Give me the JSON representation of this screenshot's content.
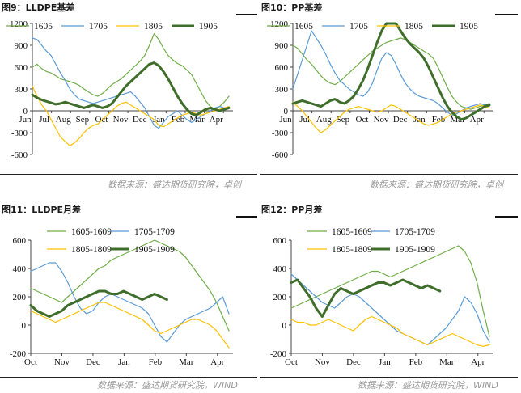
{
  "panels": [
    {
      "title": "图9：LLDPE基差",
      "source": "数据来源：盛达期货研究院，卓创",
      "chart_data": {
        "type": "line",
        "ylim": [
          -600,
          1200
        ],
        "yticks": [
          -600,
          -300,
          0,
          300,
          600,
          900,
          1200
        ],
        "xticks": [
          "Jun",
          "Jul",
          "Aug",
          "Sep",
          "Oct",
          "Nov",
          "Dec",
          "Jan",
          "Feb",
          "Mar",
          "Apr"
        ],
        "xaxis_at": 0,
        "series": [
          {
            "name": "1605",
            "color": "#70ad47",
            "width": 1.2,
            "values": [
              600,
              640,
              580,
              540,
              520,
              480,
              440,
              420,
              400,
              380,
              350,
              300,
              260,
              220,
              200,
              240,
              300,
              360,
              400,
              440,
              500,
              560,
              620,
              680,
              760,
              900,
              1060,
              980,
              860,
              760,
              700,
              650,
              620,
              560,
              500,
              380,
              260,
              140,
              60,
              20,
              60,
              120,
              200
            ]
          },
          {
            "name": "1705",
            "color": "#5b9bd5",
            "width": 1.2,
            "values": [
              1000,
              980,
              900,
              820,
              760,
              640,
              520,
              420,
              300,
              220,
              160,
              140,
              120,
              100,
              120,
              140,
              160,
              180,
              200,
              220,
              240,
              260,
              200,
              120,
              40,
              -80,
              -200,
              -240,
              -160,
              -80,
              -40,
              0,
              -60,
              -120,
              -160,
              -120,
              -80,
              -40,
              0,
              40,
              60,
              40,
              60
            ]
          },
          {
            "name": "1805",
            "color": "#ffc000",
            "width": 1.2,
            "values": [
              340,
              200,
              80,
              0,
              -120,
              -240,
              -360,
              -420,
              -480,
              -440,
              -380,
              -300,
              -240,
              -200,
              -180,
              -120,
              -60,
              0,
              60,
              100,
              120,
              80,
              40,
              0,
              -40,
              -80,
              -120,
              -200,
              -220,
              -180,
              -140,
              -100,
              -60,
              -40,
              -20,
              -40,
              -60,
              -40,
              -20,
              0,
              20,
              40,
              60
            ]
          },
          {
            "name": "1905",
            "color": "#3f6e2a",
            "width": 3,
            "values": [
              220,
              180,
              150,
              130,
              110,
              90,
              100,
              120,
              100,
              80,
              60,
              40,
              60,
              80,
              60,
              40,
              60,
              100,
              180,
              260,
              340,
              400,
              460,
              520,
              580,
              640,
              660,
              620,
              540,
              440,
              320,
              200,
              100,
              20,
              -40,
              -60,
              -20,
              20,
              40,
              20,
              0,
              20,
              40
            ]
          }
        ]
      }
    },
    {
      "title": "图10：PP基差",
      "source": "数据来源：盛达期货研究院，卓创",
      "chart_data": {
        "type": "line",
        "ylim": [
          -600,
          1200
        ],
        "yticks": [
          -600,
          -300,
          0,
          300,
          600,
          900,
          1200
        ],
        "xticks": [
          "Jun",
          "Jul",
          "Aug",
          "Sep",
          "Oct",
          "Nov",
          "Dec",
          "Jan",
          "Feb",
          "Mar",
          "Apr"
        ],
        "xaxis_at": 0,
        "series": [
          {
            "name": "1605",
            "color": "#70ad47",
            "width": 1.2,
            "values": [
              900,
              860,
              780,
              700,
              640,
              560,
              480,
              420,
              380,
              360,
              400,
              460,
              520,
              580,
              640,
              700,
              760,
              820,
              860,
              900,
              940,
              960,
              980,
              1000,
              980,
              940,
              900,
              860,
              820,
              780,
              720,
              600,
              460,
              320,
              200,
              120,
              60,
              40,
              20,
              40,
              60,
              80,
              100
            ]
          },
          {
            "name": "1705",
            "color": "#5b9bd5",
            "width": 1.2,
            "values": [
              300,
              500,
              700,
              900,
              1100,
              1000,
              900,
              780,
              640,
              520,
              420,
              360,
              300,
              260,
              220,
              200,
              260,
              380,
              560,
              720,
              800,
              760,
              640,
              500,
              380,
              300,
              240,
              200,
              180,
              160,
              140,
              100,
              40,
              -20,
              -60,
              -40,
              0,
              40,
              60,
              80,
              100,
              80,
              60
            ]
          },
          {
            "name": "1805",
            "color": "#ffc000",
            "width": 1.2,
            "values": [
              120,
              60,
              0,
              -80,
              -160,
              -240,
              -300,
              -260,
              -200,
              -140,
              -80,
              -20,
              20,
              40,
              60,
              40,
              20,
              0,
              -20,
              0,
              40,
              80,
              60,
              20,
              -20,
              -60,
              -100,
              -140,
              -180,
              -200,
              -180,
              -160,
              -120,
              -80,
              -40,
              -20,
              0,
              20,
              40,
              60,
              80,
              60,
              40
            ]
          },
          {
            "name": "1905",
            "color": "#3f6e2a",
            "width": 3,
            "values": [
              100,
              120,
              140,
              120,
              100,
              80,
              60,
              100,
              140,
              160,
              120,
              100,
              140,
              200,
              300,
              420,
              580,
              760,
              940,
              1100,
              1200,
              1200,
              1200,
              1100,
              1000,
              920,
              860,
              800,
              720,
              600,
              460,
              320,
              180,
              60,
              -20,
              -80,
              -120,
              -100,
              -60,
              -20,
              20,
              60,
              80
            ]
          }
        ]
      }
    },
    {
      "title": "图11：LLDPE月差",
      "source": "数据来源：盛达期货研究院，WIND",
      "chart_data": {
        "type": "line",
        "ylim": [
          -200,
          600
        ],
        "yticks": [
          -200,
          0,
          200,
          400,
          600
        ],
        "xticks": [
          "Oct",
          "Nov",
          "Dec",
          "Jan",
          "Feb",
          "Mar",
          "Apr"
        ],
        "xaxis_at": -200,
        "series": [
          {
            "name": "1605-1609",
            "color": "#70ad47",
            "width": 1.2,
            "values": [
              260,
              240,
              220,
              200,
              180,
              160,
              200,
              240,
              280,
              320,
              360,
              400,
              420,
              460,
              480,
              500,
              520,
              540,
              560,
              580,
              600,
              580,
              560,
              540,
              520,
              480,
              420,
              360,
              300,
              240,
              160,
              60,
              -40
            ]
          },
          {
            "name": "1705-1709",
            "color": "#5b9bd5",
            "width": 1.2,
            "values": [
              380,
              400,
              420,
              440,
              440,
              380,
              300,
              200,
              120,
              80,
              100,
              160,
              200,
              220,
              200,
              180,
              160,
              140,
              120,
              80,
              0,
              -80,
              -120,
              -60,
              0,
              40,
              60,
              80,
              100,
              120,
              160,
              200,
              80
            ]
          },
          {
            "name": "1805-1809",
            "color": "#ffc000",
            "width": 1.2,
            "values": [
              100,
              80,
              60,
              40,
              20,
              40,
              60,
              80,
              100,
              120,
              140,
              160,
              160,
              140,
              120,
              100,
              80,
              60,
              40,
              0,
              -40,
              -60,
              -40,
              -20,
              0,
              20,
              40,
              40,
              20,
              0,
              -40,
              -100,
              -160
            ]
          },
          {
            "name": "1905-1909",
            "color": "#3f6e2a",
            "width": 3,
            "values": [
              140,
              100,
              80,
              60,
              80,
              100,
              140,
              160,
              180,
              200,
              220,
              240,
              240,
              220,
              220,
              240,
              220,
              200,
              180,
              200,
              220,
              200,
              180
            ]
          }
        ]
      }
    },
    {
      "title": "图12：PP月差",
      "source": "数据来源：盛达期货研究院，WIND",
      "chart_data": {
        "type": "line",
        "ylim": [
          -200,
          600
        ],
        "yticks": [
          -200,
          0,
          200,
          400,
          600
        ],
        "xticks": [
          "Oct",
          "Nov",
          "Dec",
          "Jan",
          "Feb",
          "Mar",
          "Apr"
        ],
        "xaxis_at": -200,
        "series": [
          {
            "name": "1605-1609",
            "color": "#70ad47",
            "width": 1.2,
            "values": [
              120,
              140,
              160,
              180,
              200,
              220,
              240,
              260,
              280,
              300,
              320,
              340,
              360,
              380,
              380,
              360,
              340,
              360,
              380,
              400,
              420,
              440,
              460,
              480,
              500,
              520,
              540,
              560,
              520,
              440,
              300,
              100,
              -80
            ]
          },
          {
            "name": "1705-1709",
            "color": "#5b9bd5",
            "width": 1.2,
            "values": [
              360,
              320,
              280,
              240,
              200,
              160,
              140,
              120,
              160,
              200,
              220,
              200,
              160,
              120,
              80,
              40,
              0,
              -40,
              -60,
              -80,
              -100,
              -120,
              -140,
              -100,
              -60,
              -20,
              40,
              100,
              200,
              160,
              80,
              -40,
              -120
            ]
          },
          {
            "name": "1805-1809",
            "color": "#ffc000",
            "width": 1.2,
            "values": [
              40,
              20,
              20,
              0,
              0,
              20,
              40,
              20,
              0,
              -20,
              -40,
              0,
              40,
              60,
              40,
              20,
              0,
              -20,
              -60,
              -80,
              -100,
              -120,
              -140,
              -120,
              -100,
              -80,
              -60,
              -80,
              -100,
              -120,
              -140,
              -150,
              -140
            ]
          },
          {
            "name": "1905-1909",
            "color": "#3f6e2a",
            "width": 3,
            "values": [
              300,
              320,
              260,
              200,
              120,
              60,
              140,
              220,
              260,
              240,
              220,
              240,
              260,
              280,
              300,
              300,
              280,
              300,
              320,
              300,
              280,
              260,
              280,
              260,
              240
            ]
          }
        ]
      }
    }
  ]
}
